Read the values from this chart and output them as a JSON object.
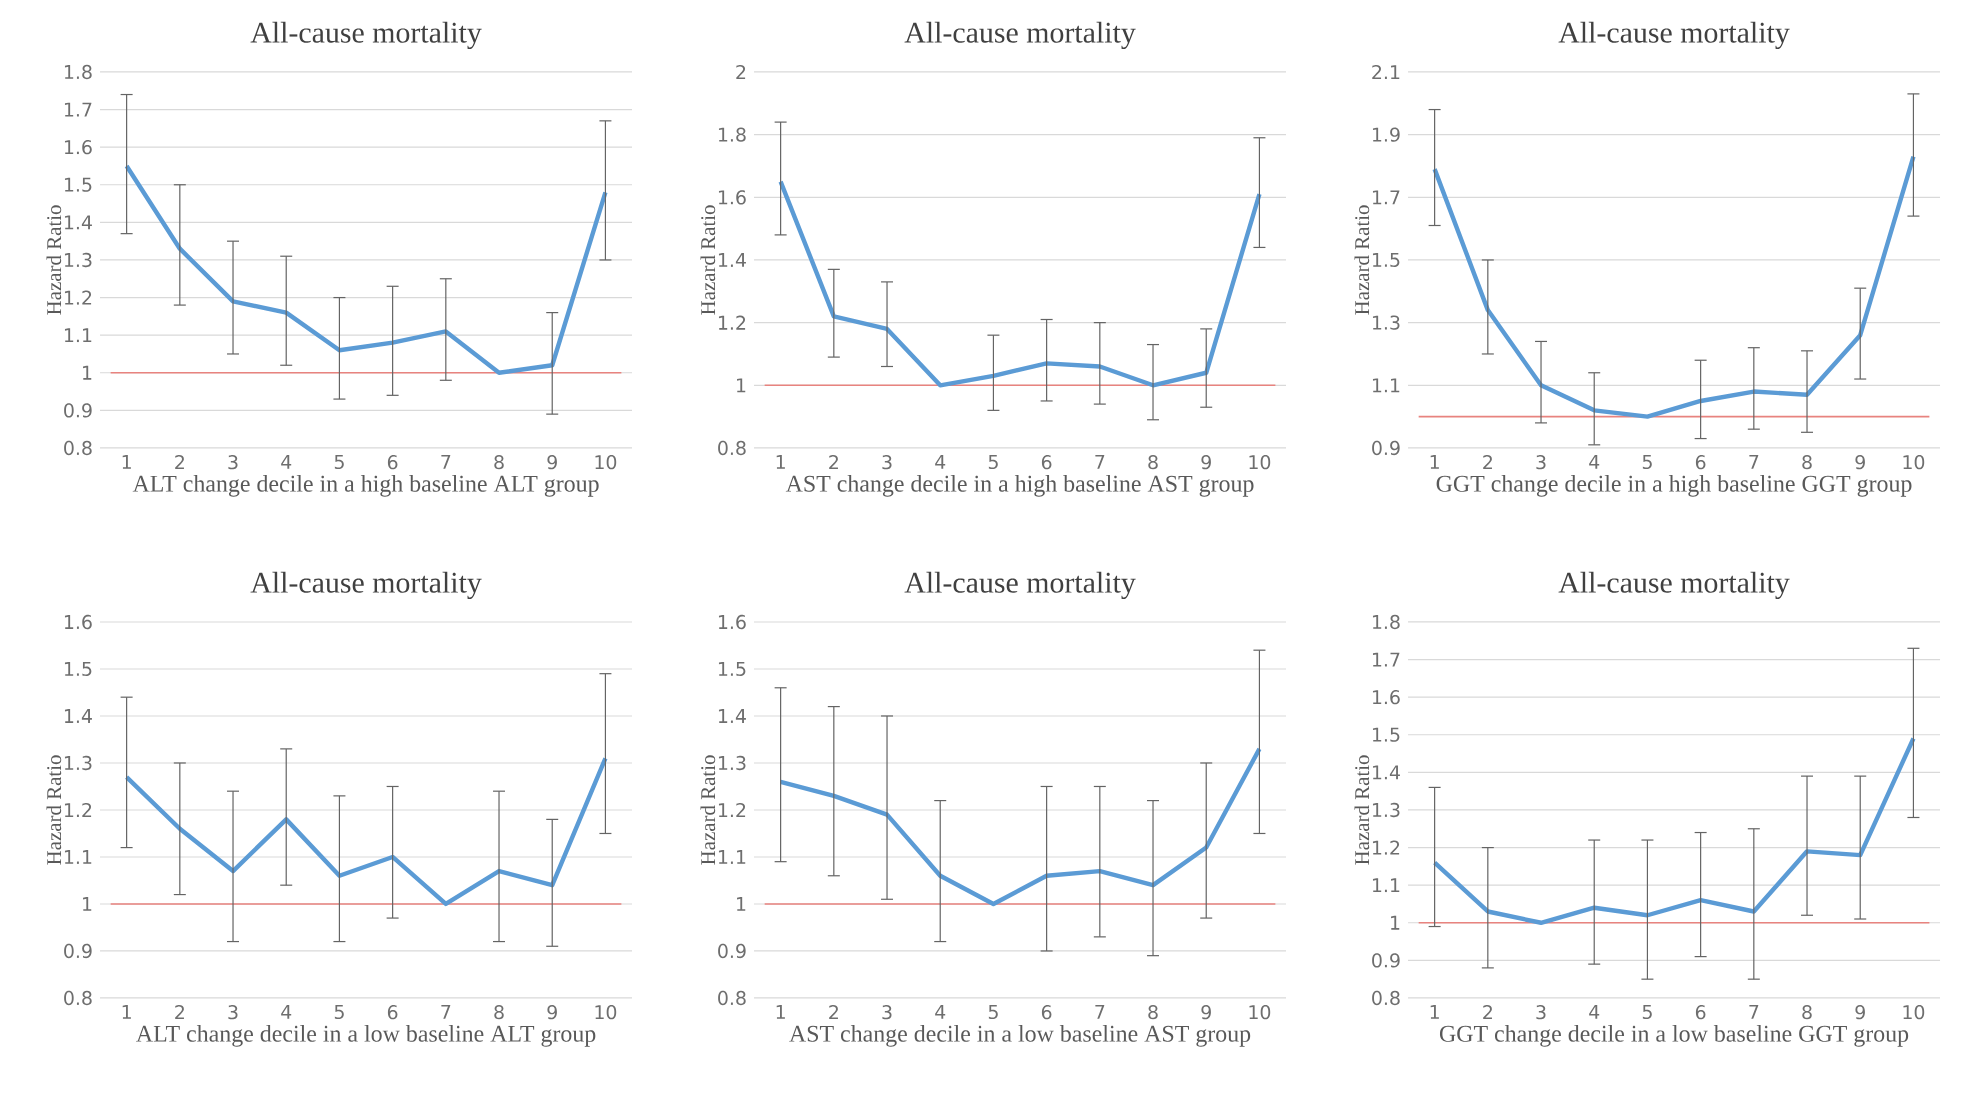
{
  "chart_data": [
    {
      "type": "line",
      "title": "All-cause mortality",
      "xlabel": "ALT change decile in a high baseline ALT group",
      "ylabel": "Hazard Ratio",
      "categories": [
        "1",
        "2",
        "3",
        "4",
        "5",
        "6",
        "7",
        "8",
        "9",
        "10"
      ],
      "color": "#5b9bd5",
      "values": [
        1.55,
        1.33,
        1.19,
        1.16,
        1.06,
        1.08,
        1.11,
        1.0,
        1.02,
        1.48
      ],
      "errors": [
        [
          1.37,
          1.74
        ],
        [
          1.18,
          1.5
        ],
        [
          1.05,
          1.35
        ],
        [
          1.02,
          1.31
        ],
        [
          0.93,
          1.2
        ],
        [
          0.94,
          1.23
        ],
        [
          0.98,
          1.25
        ],
        null,
        [
          0.89,
          1.16
        ],
        [
          1.3,
          1.67
        ]
      ],
      "ylim": [
        0.8,
        1.8
      ],
      "yticks": [
        0.8,
        0.9,
        1,
        1.1,
        1.2,
        1.3,
        1.4,
        1.5,
        1.6,
        1.7,
        1.8
      ],
      "grid": "y",
      "ref_lines": [
        {
          "axis": "y",
          "value": 1,
          "color": "#e8837f"
        }
      ]
    },
    {
      "type": "line",
      "title": "All-cause mortality",
      "xlabel": "AST change decile in a high baseline AST group",
      "ylabel": "Hazard Ratio",
      "categories": [
        "1",
        "2",
        "3",
        "4",
        "5",
        "6",
        "7",
        "8",
        "9",
        "10"
      ],
      "color": "#5b9bd5",
      "values": [
        1.65,
        1.22,
        1.18,
        1.0,
        1.03,
        1.07,
        1.06,
        1.0,
        1.04,
        1.61
      ],
      "errors": [
        [
          1.48,
          1.84
        ],
        [
          1.09,
          1.37
        ],
        [
          1.06,
          1.33
        ],
        null,
        [
          0.92,
          1.16
        ],
        [
          0.95,
          1.21
        ],
        [
          0.94,
          1.2
        ],
        [
          0.89,
          1.13
        ],
        [
          0.93,
          1.18
        ],
        [
          1.44,
          1.79
        ]
      ],
      "ylim": [
        0.8,
        2
      ],
      "yticks": [
        0.8,
        1,
        1.2,
        1.4,
        1.6,
        1.8,
        2
      ],
      "grid": "y",
      "ref_lines": [
        {
          "axis": "y",
          "value": 1,
          "color": "#e8837f"
        }
      ]
    },
    {
      "type": "line",
      "title": "All-cause mortality",
      "xlabel": "GGT change decile in a high baseline GGT group",
      "ylabel": "Hazard Ratio",
      "categories": [
        "1",
        "2",
        "3",
        "4",
        "5",
        "6",
        "7",
        "8",
        "9",
        "10"
      ],
      "color": "#5b9bd5",
      "values": [
        1.79,
        1.34,
        1.1,
        1.02,
        1.0,
        1.05,
        1.08,
        1.07,
        1.26,
        1.83
      ],
      "errors": [
        [
          1.61,
          1.98
        ],
        [
          1.2,
          1.5
        ],
        [
          0.98,
          1.24
        ],
        [
          0.91,
          1.14
        ],
        null,
        [
          0.93,
          1.18
        ],
        [
          0.96,
          1.22
        ],
        [
          0.95,
          1.21
        ],
        [
          1.12,
          1.41
        ],
        [
          1.64,
          2.03
        ]
      ],
      "ylim": [
        0.9,
        2.1
      ],
      "yticks": [
        0.9,
        1.1,
        1.3,
        1.5,
        1.7,
        1.9,
        2.1
      ],
      "grid": "y",
      "ref_lines": [
        {
          "axis": "y",
          "value": 1,
          "color": "#e8837f"
        }
      ]
    },
    {
      "type": "line",
      "title": "All-cause mortality",
      "xlabel": "ALT change decile in a low baseline ALT group",
      "ylabel": "Hazard Ratio",
      "categories": [
        "1",
        "2",
        "3",
        "4",
        "5",
        "6",
        "7",
        "8",
        "9",
        "10"
      ],
      "color": "#5b9bd5",
      "values": [
        1.27,
        1.16,
        1.07,
        1.18,
        1.06,
        1.1,
        1.0,
        1.07,
        1.04,
        1.31
      ],
      "errors": [
        [
          1.12,
          1.44
        ],
        [
          1.02,
          1.3
        ],
        [
          0.92,
          1.24
        ],
        [
          1.04,
          1.33
        ],
        [
          0.92,
          1.23
        ],
        [
          0.97,
          1.25
        ],
        null,
        [
          0.92,
          1.24
        ],
        [
          0.91,
          1.18
        ],
        [
          1.15,
          1.49
        ]
      ],
      "ylim": [
        0.8,
        1.6
      ],
      "yticks": [
        0.8,
        0.9,
        1,
        1.1,
        1.2,
        1.3,
        1.4,
        1.5,
        1.6
      ],
      "grid": "y",
      "ref_lines": [
        {
          "axis": "y",
          "value": 1,
          "color": "#e8837f"
        }
      ]
    },
    {
      "type": "line",
      "title": "All-cause mortality",
      "xlabel": "AST change decile in a low baseline AST group",
      "ylabel": "Hazard Ratio",
      "categories": [
        "1",
        "2",
        "3",
        "4",
        "5",
        "6",
        "7",
        "8",
        "9",
        "10"
      ],
      "color": "#5b9bd5",
      "values": [
        1.26,
        1.23,
        1.19,
        1.06,
        1.0,
        1.06,
        1.07,
        1.04,
        1.12,
        1.33
      ],
      "errors": [
        [
          1.09,
          1.46
        ],
        [
          1.06,
          1.42
        ],
        [
          1.01,
          1.4
        ],
        [
          0.92,
          1.22
        ],
        null,
        [
          0.9,
          1.25
        ],
        [
          0.93,
          1.25
        ],
        [
          0.89,
          1.22
        ],
        [
          0.97,
          1.3
        ],
        [
          1.15,
          1.54
        ]
      ],
      "ylim": [
        0.8,
        1.6
      ],
      "yticks": [
        0.8,
        0.9,
        1,
        1.1,
        1.2,
        1.3,
        1.4,
        1.5,
        1.6
      ],
      "grid": "y",
      "ref_lines": [
        {
          "axis": "y",
          "value": 1,
          "color": "#e8837f"
        }
      ]
    },
    {
      "type": "line",
      "title": "All-cause mortality",
      "xlabel": "GGT change decile in a low baseline GGT group",
      "ylabel": "Hazard Ratio",
      "categories": [
        "1",
        "2",
        "3",
        "4",
        "5",
        "6",
        "7",
        "8",
        "9",
        "10"
      ],
      "color": "#5b9bd5",
      "values": [
        1.16,
        1.03,
        1.0,
        1.04,
        1.02,
        1.06,
        1.03,
        1.19,
        1.18,
        1.49
      ],
      "errors": [
        [
          0.99,
          1.36
        ],
        [
          0.88,
          1.2
        ],
        null,
        [
          0.89,
          1.22
        ],
        [
          0.85,
          1.22
        ],
        [
          0.91,
          1.24
        ],
        [
          0.85,
          1.25
        ],
        [
          1.02,
          1.39
        ],
        [
          1.01,
          1.39
        ],
        [
          1.28,
          1.73
        ]
      ],
      "ylim": [
        0.8,
        1.8
      ],
      "yticks": [
        0.8,
        0.9,
        1,
        1.1,
        1.2,
        1.3,
        1.4,
        1.5,
        1.6,
        1.7,
        1.8
      ],
      "grid": "y",
      "ref_lines": [
        {
          "axis": "y",
          "value": 1,
          "color": "#e8837f"
        }
      ]
    }
  ]
}
